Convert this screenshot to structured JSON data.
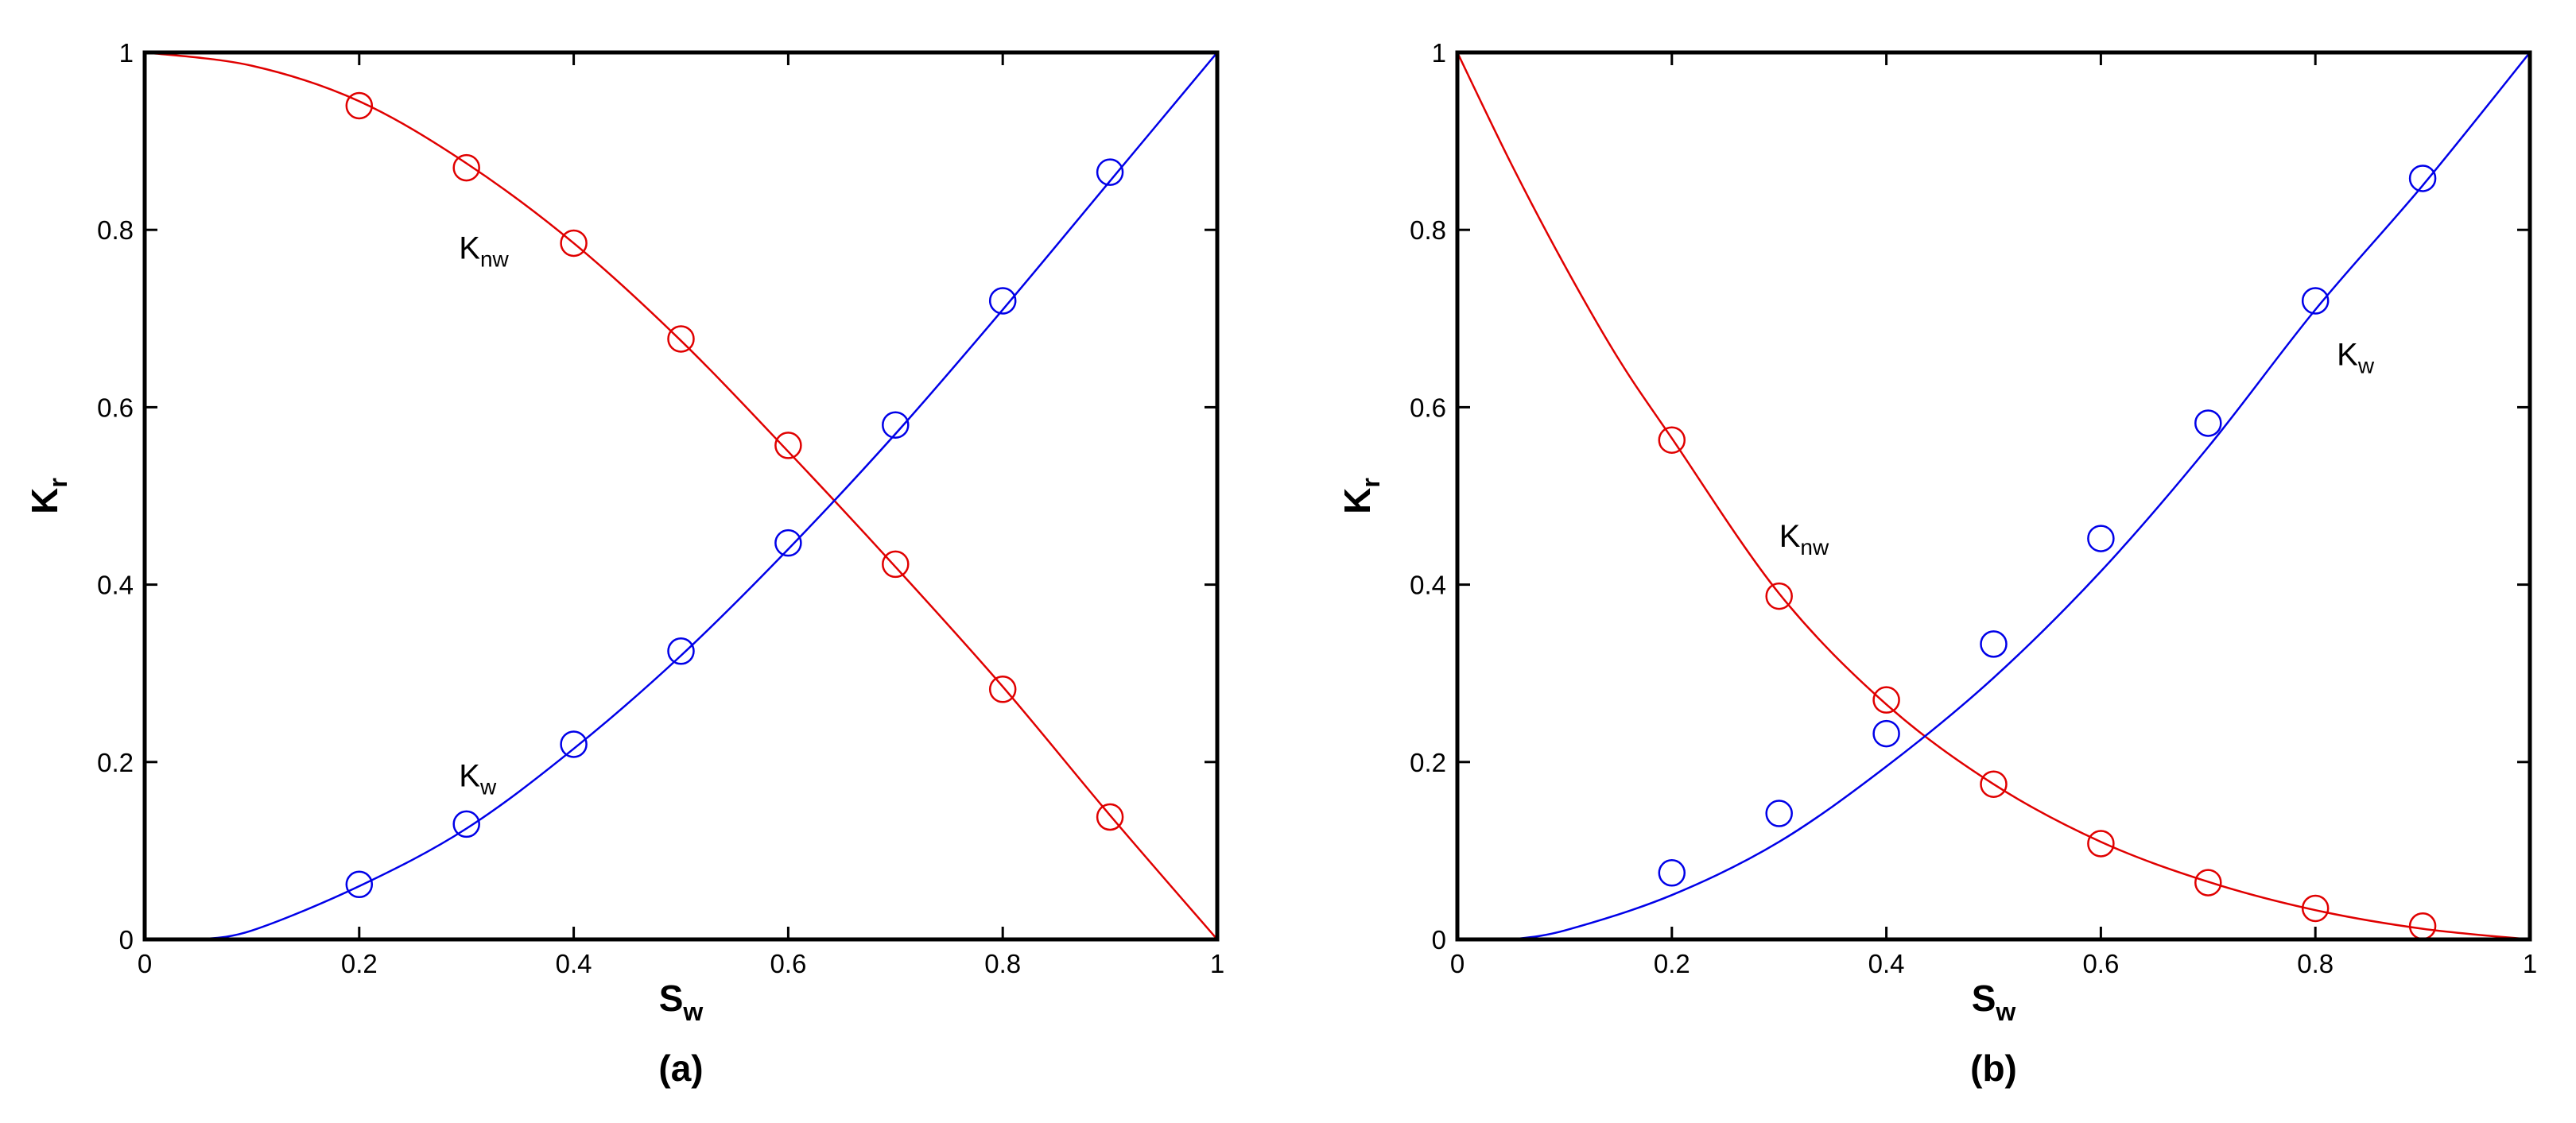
{
  "chart_data": [
    {
      "type": "line",
      "caption": "(a)",
      "xlabel": {
        "text": "S",
        "sub": "w"
      },
      "ylabel": {
        "text": "K",
        "sub": "r"
      },
      "xlim": [
        0,
        1
      ],
      "ylim": [
        0,
        1
      ],
      "xticks": [
        0,
        0.2,
        0.4,
        0.6,
        0.8,
        1
      ],
      "yticks": [
        0,
        0.2,
        0.4,
        0.6,
        0.8,
        1
      ],
      "annotations": [
        {
          "text": "K",
          "sub": "nw",
          "x": 0.293,
          "y": 0.78
        },
        {
          "text": "K",
          "sub": "w",
          "x": 0.293,
          "y": 0.185
        }
      ],
      "series": [
        {
          "style": "line",
          "color": "#e00000",
          "x": [
            0,
            0.1,
            0.2,
            0.3,
            0.4,
            0.5,
            0.6,
            0.7,
            0.8,
            0.9,
            1
          ],
          "values": [
            1,
            0.985,
            0.945,
            0.875,
            0.785,
            0.675,
            0.55,
            0.42,
            0.285,
            0.14,
            0
          ]
        },
        {
          "style": "line",
          "color": "#0000e8",
          "x": [
            0.05,
            0.1,
            0.2,
            0.3,
            0.4,
            0.5,
            0.6,
            0.7,
            0.8,
            0.9,
            1
          ],
          "values": [
            0,
            0.01,
            0.06,
            0.125,
            0.215,
            0.32,
            0.44,
            0.57,
            0.71,
            0.855,
            1
          ]
        },
        {
          "style": "markers",
          "color": "#e00000",
          "x": [
            0.2,
            0.3,
            0.4,
            0.5,
            0.6,
            0.7,
            0.8,
            0.9
          ],
          "values": [
            0.94,
            0.87,
            0.785,
            0.677,
            0.557,
            0.423,
            0.282,
            0.138
          ]
        },
        {
          "style": "markers",
          "color": "#0000e8",
          "x": [
            0.2,
            0.3,
            0.4,
            0.5,
            0.6,
            0.7,
            0.8,
            0.9
          ],
          "values": [
            0.062,
            0.13,
            0.22,
            0.325,
            0.447,
            0.58,
            0.72,
            0.865
          ]
        }
      ]
    },
    {
      "type": "line",
      "caption": "(b)",
      "xlabel": {
        "text": "S",
        "sub": "w"
      },
      "ylabel": {
        "text": "K",
        "sub": "r"
      },
      "xlim": [
        0,
        1
      ],
      "ylim": [
        0,
        1
      ],
      "xticks": [
        0,
        0.2,
        0.4,
        0.6,
        0.8,
        1
      ],
      "yticks": [
        0,
        0.2,
        0.4,
        0.6,
        0.8,
        1
      ],
      "annotations": [
        {
          "text": "K",
          "sub": "w",
          "x": 0.82,
          "y": 0.66
        },
        {
          "text": "K",
          "sub": "nw",
          "x": 0.3,
          "y": 0.455
        }
      ],
      "series": [
        {
          "style": "line",
          "color": "#e00000",
          "x": [
            0,
            0.05,
            0.1,
            0.15,
            0.2,
            0.3,
            0.4,
            0.5,
            0.6,
            0.7,
            0.8,
            0.9,
            1
          ],
          "values": [
            1,
            0.875,
            0.76,
            0.655,
            0.565,
            0.39,
            0.265,
            0.175,
            0.11,
            0.065,
            0.033,
            0.012,
            0
          ]
        },
        {
          "style": "line",
          "color": "#0000e8",
          "x": [
            0.05,
            0.1,
            0.2,
            0.3,
            0.4,
            0.5,
            0.6,
            0.7,
            0.8,
            0.9,
            1
          ],
          "values": [
            0,
            0.01,
            0.05,
            0.11,
            0.195,
            0.295,
            0.415,
            0.555,
            0.71,
            0.85,
            1
          ]
        },
        {
          "style": "markers",
          "color": "#e00000",
          "x": [
            0.2,
            0.3,
            0.4,
            0.5,
            0.6,
            0.7,
            0.8,
            0.9
          ],
          "values": [
            0.563,
            0.387,
            0.27,
            0.175,
            0.108,
            0.064,
            0.035,
            0.015
          ]
        },
        {
          "style": "markers",
          "color": "#0000e8",
          "x": [
            0.2,
            0.3,
            0.4,
            0.5,
            0.6,
            0.7,
            0.8,
            0.9
          ],
          "values": [
            0.075,
            0.142,
            0.232,
            0.333,
            0.452,
            0.582,
            0.72,
            0.858
          ]
        }
      ]
    }
  ]
}
